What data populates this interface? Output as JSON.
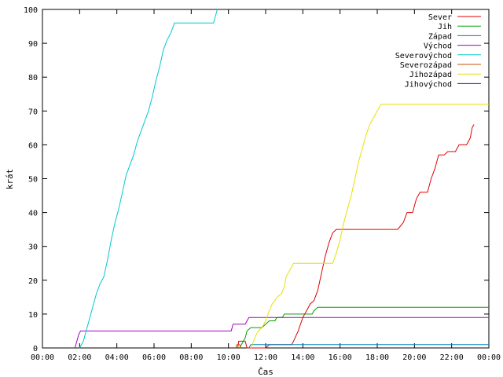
{
  "chart_data": {
    "type": "line",
    "xlabel": "Čas",
    "ylabel": "krát",
    "x_ticks": [
      "00:00",
      "02:00",
      "04:00",
      "06:00",
      "08:00",
      "10:00",
      "12:00",
      "14:00",
      "16:00",
      "18:00",
      "20:00",
      "22:00",
      "00:00"
    ],
    "xlim": [
      0,
      24
    ],
    "ylim": [
      0,
      100
    ],
    "y_ticks": [
      0,
      10,
      20,
      30,
      40,
      50,
      60,
      70,
      80,
      90,
      100
    ],
    "grid": false,
    "legend": "top-right",
    "series": [
      {
        "name": "Sever",
        "color": "#e00000",
        "points": [
          [
            10.5,
            0
          ],
          [
            10.55,
            2
          ],
          [
            10.9,
            2
          ],
          [
            11.0,
            0
          ],
          [
            12.0,
            0
          ],
          [
            12.2,
            1
          ],
          [
            13.4,
            1
          ],
          [
            13.5,
            2
          ],
          [
            13.75,
            5
          ],
          [
            14.0,
            9
          ],
          [
            14.4,
            13
          ],
          [
            14.6,
            14
          ],
          [
            14.8,
            17
          ],
          [
            15.0,
            22
          ],
          [
            15.2,
            27
          ],
          [
            15.4,
            31
          ],
          [
            15.6,
            34
          ],
          [
            15.8,
            35
          ],
          [
            19.1,
            35
          ],
          [
            19.4,
            37
          ],
          [
            19.6,
            40
          ],
          [
            19.9,
            40
          ],
          [
            20.1,
            44
          ],
          [
            20.3,
            46
          ],
          [
            20.7,
            46
          ],
          [
            20.9,
            50
          ],
          [
            21.1,
            53
          ],
          [
            21.3,
            57
          ],
          [
            21.6,
            57
          ],
          [
            21.8,
            58
          ],
          [
            22.2,
            58
          ],
          [
            22.4,
            60
          ],
          [
            22.8,
            60
          ],
          [
            23.0,
            62
          ],
          [
            23.1,
            65
          ],
          [
            23.2,
            66
          ]
        ]
      },
      {
        "name": "Jih",
        "color": "#00a000",
        "points": [
          [
            10.6,
            0
          ],
          [
            10.8,
            2
          ],
          [
            10.9,
            3
          ],
          [
            11.0,
            5
          ],
          [
            11.2,
            6
          ],
          [
            11.8,
            6
          ],
          [
            12.0,
            7
          ],
          [
            12.2,
            8
          ],
          [
            12.5,
            8
          ],
          [
            12.6,
            9
          ],
          [
            12.9,
            9
          ],
          [
            13.0,
            10
          ],
          [
            14.5,
            10
          ],
          [
            14.6,
            11
          ],
          [
            14.8,
            12
          ],
          [
            24,
            12
          ]
        ]
      },
      {
        "name": "Západ",
        "color": "#0080c0",
        "points": [
          [
            11.1,
            0
          ],
          [
            11.2,
            1
          ],
          [
            24,
            1
          ]
        ]
      },
      {
        "name": "Východ",
        "color": "#a000c0",
        "points": [
          [
            1.75,
            0
          ],
          [
            1.85,
            2
          ],
          [
            1.95,
            4
          ],
          [
            2.05,
            5
          ],
          [
            10.15,
            5
          ],
          [
            10.25,
            7
          ],
          [
            10.9,
            7
          ],
          [
            11.0,
            8
          ],
          [
            11.1,
            9
          ],
          [
            24,
            9
          ]
        ]
      },
      {
        "name": "Severovýchod",
        "color": "#00c8d0",
        "points": [
          [
            2.0,
            0
          ],
          [
            2.2,
            2
          ],
          [
            2.35,
            5
          ],
          [
            2.5,
            8
          ],
          [
            2.7,
            12
          ],
          [
            2.9,
            16
          ],
          [
            3.1,
            19
          ],
          [
            3.3,
            21
          ],
          [
            3.5,
            26
          ],
          [
            3.7,
            32
          ],
          [
            3.9,
            37
          ],
          [
            4.1,
            41
          ],
          [
            4.3,
            46
          ],
          [
            4.5,
            51
          ],
          [
            4.7,
            54
          ],
          [
            4.9,
            57
          ],
          [
            5.1,
            61
          ],
          [
            5.3,
            64
          ],
          [
            5.5,
            67
          ],
          [
            5.7,
            70
          ],
          [
            5.9,
            74
          ],
          [
            6.1,
            79
          ],
          [
            6.3,
            83
          ],
          [
            6.5,
            88
          ],
          [
            6.7,
            91
          ],
          [
            6.9,
            93
          ],
          [
            7.1,
            96
          ],
          [
            9.2,
            96
          ],
          [
            9.4,
            100
          ]
        ]
      },
      {
        "name": "Severozápad",
        "color": "#c05000",
        "points": [
          [
            10.4,
            0
          ],
          [
            10.45,
            1
          ],
          [
            10.6,
            1
          ],
          [
            10.65,
            0
          ]
        ]
      },
      {
        "name": "Jihozápad",
        "color": "#e8e000",
        "points": [
          [
            11.2,
            0
          ],
          [
            11.35,
            2
          ],
          [
            11.5,
            4
          ],
          [
            11.6,
            5
          ],
          [
            11.8,
            6
          ],
          [
            12.0,
            8
          ],
          [
            12.2,
            11
          ],
          [
            12.35,
            13
          ],
          [
            12.5,
            14
          ],
          [
            12.6,
            15
          ],
          [
            12.85,
            16
          ],
          [
            13.0,
            18
          ],
          [
            13.1,
            21
          ],
          [
            13.3,
            23
          ],
          [
            13.5,
            25
          ],
          [
            15.6,
            25
          ],
          [
            15.8,
            28
          ],
          [
            16.0,
            32
          ],
          [
            16.2,
            37
          ],
          [
            16.4,
            41
          ],
          [
            16.6,
            45
          ],
          [
            16.8,
            50
          ],
          [
            17.0,
            55
          ],
          [
            17.2,
            59
          ],
          [
            17.4,
            63
          ],
          [
            17.6,
            66
          ],
          [
            17.8,
            68
          ],
          [
            18.0,
            70
          ],
          [
            18.2,
            72
          ],
          [
            24,
            72
          ]
        ]
      },
      {
        "name": "Jihovýchod",
        "color": "#3020a0",
        "points": []
      }
    ]
  }
}
